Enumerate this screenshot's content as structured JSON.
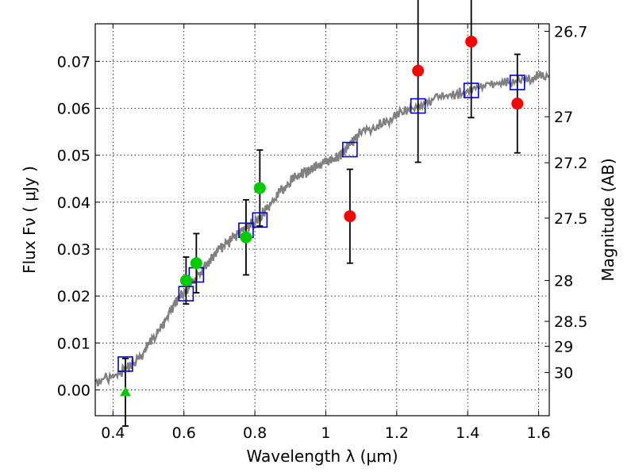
{
  "chart_data": {
    "type": "scatter",
    "xlabel": "Wavelength  λ (μm)",
    "ylabel": "Flux  Fν  ( μJy )",
    "ylabel_right": "Magnitude (AB)",
    "xlim": [
      0.35,
      1.63
    ],
    "ylim": [
      -0.0055,
      0.078
    ],
    "grid": true,
    "x_ticks": [
      0.4,
      0.6,
      0.8,
      1.0,
      1.2,
      1.4,
      1.6
    ],
    "x_tick_labels": [
      "0.4",
      "0.6",
      "0.8",
      "1",
      "1.2",
      "1.4",
      "1.6"
    ],
    "y_ticks": [
      0.0,
      0.01,
      0.02,
      0.03,
      0.04,
      0.05,
      0.06,
      0.07
    ],
    "y_tick_labels": [
      "0.00",
      "0.01",
      "0.02",
      "0.03",
      "0.04",
      "0.05",
      "0.06",
      "0.07"
    ],
    "right_ticks": [
      {
        "flux": 0.0764,
        "label": "26.7"
      },
      {
        "flux": 0.0582,
        "label": "27"
      },
      {
        "flux": 0.0484,
        "label": "27.2"
      },
      {
        "flux": 0.0366,
        "label": "27.5"
      },
      {
        "flux": 0.0233,
        "label": "28"
      },
      {
        "flux": 0.0146,
        "label": "28.5"
      },
      {
        "flux": 0.0093,
        "label": "29"
      },
      {
        "flux": 0.0037,
        "label": "30"
      }
    ],
    "model_spectrum": {
      "color": "#808080",
      "x": [
        0.35,
        0.38,
        0.41,
        0.43,
        0.45,
        0.47,
        0.49,
        0.5,
        0.52,
        0.54,
        0.55,
        0.57,
        0.58,
        0.6,
        0.62,
        0.64,
        0.66,
        0.68,
        0.7,
        0.72,
        0.74,
        0.76,
        0.78,
        0.8,
        0.82,
        0.84,
        0.86,
        0.88,
        0.9,
        0.92,
        0.94,
        0.96,
        0.98,
        1.0,
        1.02,
        1.04,
        1.06,
        1.08,
        1.1,
        1.13,
        1.16,
        1.19,
        1.22,
        1.25,
        1.28,
        1.31,
        1.34,
        1.37,
        1.4,
        1.43,
        1.46,
        1.49,
        1.52,
        1.55,
        1.58,
        1.6,
        1.63
      ],
      "y": [
        0.0018,
        0.0025,
        0.0032,
        0.0042,
        0.0052,
        0.0065,
        0.008,
        0.01,
        0.0118,
        0.0138,
        0.0152,
        0.0178,
        0.019,
        0.0208,
        0.0225,
        0.0242,
        0.0262,
        0.0282,
        0.0298,
        0.0312,
        0.0322,
        0.0338,
        0.0348,
        0.0358,
        0.0375,
        0.0392,
        0.041,
        0.043,
        0.0445,
        0.0455,
        0.0462,
        0.047,
        0.0478,
        0.0488,
        0.049,
        0.05,
        0.0515,
        0.053,
        0.055,
        0.0558,
        0.0568,
        0.058,
        0.0595,
        0.0605,
        0.0612,
        0.062,
        0.0625,
        0.063,
        0.0638,
        0.0642,
        0.065,
        0.0654,
        0.0656,
        0.066,
        0.0665,
        0.0668,
        0.0668
      ]
    },
    "model_bands": {
      "color": "#0000cc",
      "marker": "open-square",
      "x": [
        0.435,
        0.606,
        0.635,
        0.775,
        0.814,
        1.068,
        1.26,
        1.41,
        1.54
      ],
      "y": [
        0.0055,
        0.0205,
        0.0245,
        0.034,
        0.0362,
        0.0512,
        0.0605,
        0.0638,
        0.0655
      ]
    },
    "observations_green": {
      "color": "#00cc00",
      "marker": "filled-circle",
      "x": [
        0.606,
        0.635,
        0.775,
        0.814
      ],
      "y": [
        0.0233,
        0.027,
        0.0325,
        0.043
      ],
      "yerr": [
        0.005,
        0.0063,
        0.008,
        0.0081
      ]
    },
    "observations_red": {
      "color": "#ff0000",
      "marker": "filled-circle",
      "x": [
        1.068,
        1.26,
        1.41,
        1.54
      ],
      "y": [
        0.037,
        0.068,
        0.0742,
        0.061
      ],
      "yerr": [
        0.01,
        0.0195,
        0.0162,
        0.0105
      ]
    },
    "upper_limit": {
      "color": "#00cc00",
      "marker": "triangle",
      "x": 0.435,
      "y": -0.0005,
      "yerr": 0.0072
    }
  }
}
